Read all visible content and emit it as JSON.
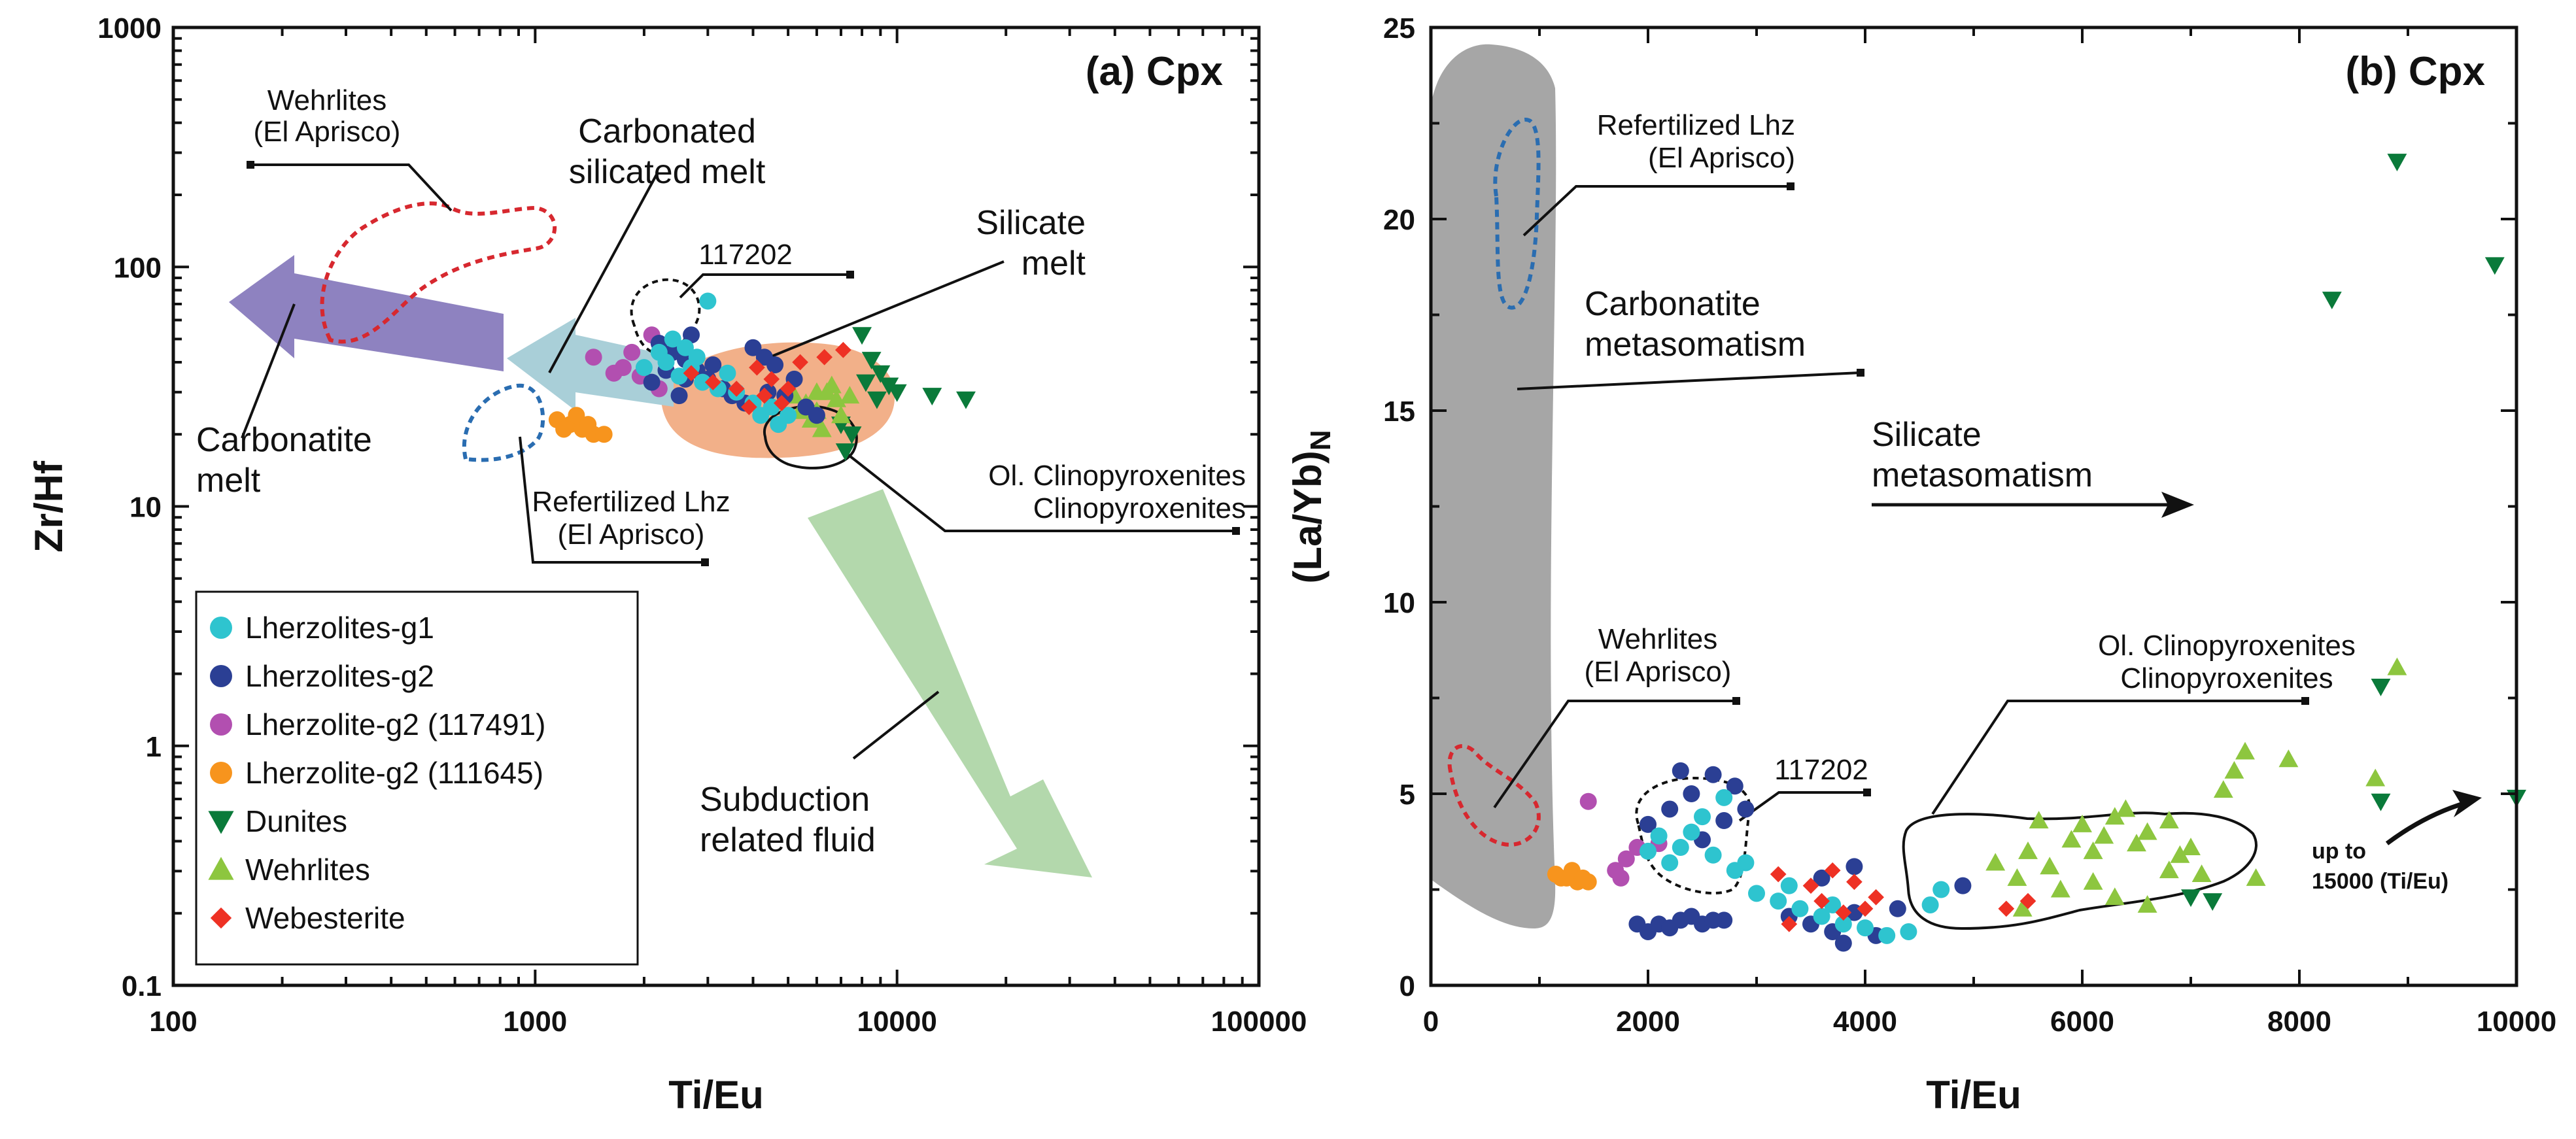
{
  "chart_data": [
    {
      "type": "scatter",
      "title": "(a) Cpx",
      "xlabel": "Ti/Eu",
      "ylabel": "Zr/Hf",
      "xscale": "log",
      "yscale": "log",
      "xlim": [
        100,
        100000
      ],
      "ylim": [
        0.1,
        1000
      ],
      "xticks": [
        "100",
        "1000",
        "10000",
        "100000"
      ],
      "yticks": [
        "0.1",
        "1",
        "10",
        "100",
        "1000"
      ],
      "legend_position": "bottom-left",
      "legend": [
        {
          "label": "Lherzolites-g1",
          "marker": "circle",
          "color": "#2ec4cf"
        },
        {
          "label": "Lherzolites-g2",
          "marker": "circle",
          "color": "#2b3f94"
        },
        {
          "label": "Lherzolite-g2 (117491)",
          "marker": "circle",
          "color": "#b24fb0"
        },
        {
          "label": "Lherzolite-g2 (111645)",
          "marker": "circle",
          "color": "#f7941d"
        },
        {
          "label": "Dunites",
          "marker": "triangle-down",
          "color": "#0a7a3a"
        },
        {
          "label": "Wehrlites",
          "marker": "triangle-up",
          "color": "#8dc63f"
        },
        {
          "label": "Webesterite",
          "marker": "diamond",
          "color": "#ee3124"
        }
      ],
      "annotations": {
        "wehrlites": "Wehrlites\n(El Aprisco)",
        "carbonated": "Carbonated\nsilicated melt",
        "silicate": "Silicate\nmelt",
        "sample": "117202",
        "carbonatite": "Carbonatite\nmelt",
        "refertilized": "Refertilized Lhz\n(El Aprisco)",
        "clinopyroxenites": "Ol. Clinopyroxenites\nClinopyroxenites",
        "subduction": "Subduction\nrelated fluid"
      },
      "series": [
        {
          "name": "Lherzolites-g1",
          "points": [
            [
              3000,
              72
            ],
            [
              2400,
              50
            ],
            [
              2600,
              46
            ],
            [
              2300,
              40
            ],
            [
              2700,
              38
            ],
            [
              2500,
              35
            ],
            [
              2900,
              33
            ],
            [
              2200,
              44
            ],
            [
              3200,
              31
            ],
            [
              3600,
              30
            ],
            [
              4000,
              27
            ],
            [
              4200,
              24
            ],
            [
              4500,
              26
            ],
            [
              5000,
              24
            ],
            [
              3400,
              36
            ],
            [
              2800,
              42
            ],
            [
              2000,
              38
            ],
            [
              4700,
              22
            ]
          ]
        },
        {
          "name": "Lherzolites-g2",
          "points": [
            [
              2200,
              48
            ],
            [
              2400,
              44
            ],
            [
              2600,
              41
            ],
            [
              2800,
              37
            ],
            [
              3000,
              34
            ],
            [
              3300,
              31
            ],
            [
              3500,
              29
            ],
            [
              4000,
              46
            ],
            [
              4300,
              42
            ],
            [
              4600,
              39
            ],
            [
              5200,
              34
            ],
            [
              2500,
              29
            ],
            [
              2100,
              33
            ],
            [
              2300,
              37
            ],
            [
              2700,
              52
            ],
            [
              3800,
              27
            ],
            [
              5600,
              26
            ],
            [
              6000,
              24
            ],
            [
              4900,
              29
            ],
            [
              3100,
              39
            ],
            [
              2600,
              34
            ],
            [
              4400,
              30
            ]
          ]
        },
        {
          "name": "Lherzolite-g2 (117491)",
          "points": [
            [
              1450,
              42
            ],
            [
              1750,
              38
            ],
            [
              1950,
              35
            ],
            [
              2100,
              52
            ],
            [
              1850,
              44
            ],
            [
              2200,
              31
            ],
            [
              1650,
              36
            ]
          ]
        },
        {
          "name": "Lherzolite-g2 (111645)",
          "points": [
            [
              1150,
              23
            ],
            [
              1250,
              22
            ],
            [
              1350,
              21
            ],
            [
              1450,
              20
            ],
            [
              1300,
              24
            ],
            [
              1200,
              21
            ],
            [
              1400,
              22
            ],
            [
              1550,
              20
            ]
          ]
        },
        {
          "name": "Dunites",
          "points": [
            [
              8000,
              52
            ],
            [
              8500,
              41
            ],
            [
              9000,
              36
            ],
            [
              9500,
              32
            ],
            [
              8800,
              28
            ],
            [
              10000,
              30
            ],
            [
              12500,
              29
            ],
            [
              15500,
              28
            ],
            [
              7000,
              22
            ],
            [
              7200,
              17
            ],
            [
              7500,
              20
            ],
            [
              8200,
              33
            ]
          ]
        },
        {
          "name": "Wehrlites",
          "points": [
            [
              5200,
              29
            ],
            [
              5600,
              27
            ],
            [
              6000,
              25
            ],
            [
              6400,
              30
            ],
            [
              6800,
              28
            ],
            [
              5800,
              23
            ],
            [
              6200,
              21
            ],
            [
              7000,
              24
            ],
            [
              6600,
              32
            ],
            [
              5400,
              25
            ],
            [
              7400,
              29
            ],
            [
              6000,
              30
            ]
          ]
        },
        {
          "name": "Webesterite",
          "points": [
            [
              2700,
              36
            ],
            [
              3100,
              33
            ],
            [
              3600,
              31
            ],
            [
              4100,
              38
            ],
            [
              4500,
              34
            ],
            [
              5000,
              31
            ],
            [
              5400,
              40
            ],
            [
              6300,
              42
            ],
            [
              7100,
              45
            ],
            [
              4800,
              27
            ],
            [
              3900,
              26
            ],
            [
              4300,
              29
            ]
          ]
        }
      ]
    },
    {
      "type": "scatter",
      "title": "(b) Cpx",
      "xlabel": "Ti/Eu",
      "ylabel": "(La/Yb)N",
      "xlim": [
        0,
        10000
      ],
      "ylim": [
        0,
        25
      ],
      "xticks": [
        "0",
        "2000",
        "4000",
        "6000",
        "8000",
        "10000"
      ],
      "yticks": [
        "0",
        "5",
        "10",
        "15",
        "20",
        "25"
      ],
      "annotations": {
        "refertilized": "Refertilized Lhz\n(El Aprisco)",
        "carbonatite": "Carbonatite\nmetasomatism",
        "silicate": "Silicate\nmetasomatism",
        "wehrlites": "Wehrlites\n(El Aprisco)",
        "sample": "117202",
        "clinopyroxenites": "Ol. Clinopyroxenites\nClinopyroxenites",
        "upto": "up to\n15000 (Ti/Eu)"
      },
      "series": [
        {
          "name": "Lherzolites-g1",
          "points": [
            [
              2000,
              3.5
            ],
            [
              2200,
              3.2
            ],
            [
              2400,
              4.0
            ],
            [
              2600,
              3.4
            ],
            [
              2800,
              3.0
            ],
            [
              2100,
              3.9
            ],
            [
              2500,
              4.4
            ],
            [
              2700,
              4.9
            ],
            [
              2300,
              3.6
            ],
            [
              2900,
              3.2
            ],
            [
              3000,
              2.4
            ],
            [
              3200,
              2.2
            ],
            [
              3400,
              2.0
            ],
            [
              3600,
              1.8
            ],
            [
              3800,
              1.6
            ],
            [
              4000,
              1.5
            ],
            [
              4200,
              1.3
            ],
            [
              4400,
              1.4
            ],
            [
              3300,
              2.6
            ],
            [
              3700,
              2.1
            ],
            [
              4600,
              2.1
            ],
            [
              4700,
              2.5
            ]
          ]
        },
        {
          "name": "Lherzolites-g2",
          "points": [
            [
              2000,
              4.2
            ],
            [
              2200,
              4.6
            ],
            [
              2400,
              5.0
            ],
            [
              2600,
              5.5
            ],
            [
              2800,
              5.2
            ],
            [
              2300,
              5.6
            ],
            [
              2700,
              4.3
            ],
            [
              2500,
              3.8
            ],
            [
              1900,
              1.6
            ],
            [
              2100,
              1.6
            ],
            [
              2300,
              1.7
            ],
            [
              2500,
              1.6
            ],
            [
              2700,
              1.7
            ],
            [
              2000,
              1.4
            ],
            [
              2200,
              1.5
            ],
            [
              2400,
              1.8
            ],
            [
              2600,
              1.7
            ],
            [
              3500,
              1.6
            ],
            [
              3700,
              1.4
            ],
            [
              3900,
              1.9
            ],
            [
              4100,
              1.3
            ],
            [
              3800,
              1.1
            ],
            [
              3600,
              2.8
            ],
            [
              3300,
              1.8
            ],
            [
              4300,
              2.0
            ],
            [
              4900,
              2.6
            ],
            [
              2900,
              4.6
            ],
            [
              3900,
              3.1
            ]
          ]
        },
        {
          "name": "Lherzolite-g2 (117491)",
          "points": [
            [
              1450,
              4.8
            ],
            [
              1700,
              3.0
            ],
            [
              1800,
              3.3
            ],
            [
              1900,
              3.6
            ],
            [
              2100,
              3.7
            ],
            [
              1750,
              2.8
            ]
          ]
        },
        {
          "name": "Lherzolite-g2 (111645)",
          "points": [
            [
              1150,
              2.9
            ],
            [
              1250,
              2.8
            ],
            [
              1350,
              2.7
            ],
            [
              1450,
              2.7
            ],
            [
              1300,
              3.0
            ],
            [
              1200,
              2.8
            ],
            [
              1400,
              2.8
            ]
          ]
        },
        {
          "name": "Dunites",
          "points": [
            [
              8900,
              21.5
            ],
            [
              9800,
              18.8
            ],
            [
              8300,
              17.9
            ],
            [
              8750,
              7.8
            ],
            [
              8750,
              4.8
            ],
            [
              10000,
              4.9
            ],
            [
              7000,
              2.3
            ],
            [
              7200,
              2.2
            ]
          ]
        },
        {
          "name": "Wehrlites",
          "points": [
            [
              5200,
              3.2
            ],
            [
              5400,
              2.8
            ],
            [
              5500,
              3.5
            ],
            [
              5700,
              3.1
            ],
            [
              5900,
              3.8
            ],
            [
              6000,
              4.2
            ],
            [
              6100,
              3.5
            ],
            [
              6200,
              3.9
            ],
            [
              6300,
              4.4
            ],
            [
              6400,
              4.6
            ],
            [
              6500,
              3.7
            ],
            [
              6600,
              4.0
            ],
            [
              6800,
              4.3
            ],
            [
              6900,
              3.4
            ],
            [
              7000,
              3.6
            ],
            [
              7100,
              2.9
            ],
            [
              7300,
              5.1
            ],
            [
              7400,
              5.6
            ],
            [
              7500,
              6.1
            ],
            [
              7900,
              5.9
            ],
            [
              8700,
              5.4
            ],
            [
              8900,
              8.3
            ],
            [
              5800,
              2.5
            ],
            [
              6100,
              2.7
            ],
            [
              6300,
              2.3
            ],
            [
              5450,
              2.0
            ],
            [
              6600,
              2.1
            ],
            [
              7600,
              2.8
            ],
            [
              6800,
              3.0
            ],
            [
              5600,
              4.3
            ]
          ]
        },
        {
          "name": "Webesterite",
          "points": [
            [
              3200,
              2.9
            ],
            [
              3500,
              2.6
            ],
            [
              3700,
              3.0
            ],
            [
              3900,
              2.7
            ],
            [
              4100,
              2.3
            ],
            [
              3600,
              2.2
            ],
            [
              3800,
              1.9
            ],
            [
              4000,
              2.0
            ],
            [
              3300,
              1.6
            ],
            [
              5300,
              2.0
            ],
            [
              5500,
              2.2
            ]
          ]
        }
      ]
    }
  ]
}
